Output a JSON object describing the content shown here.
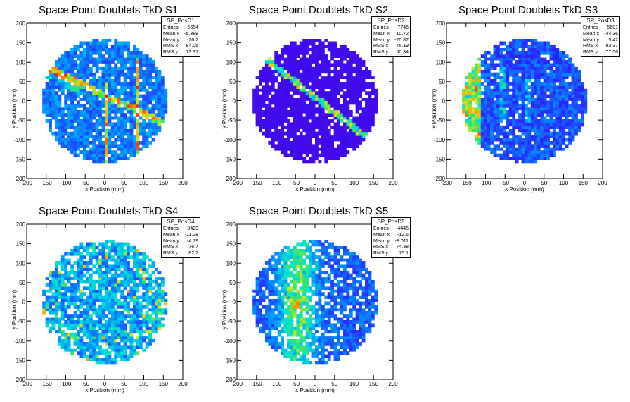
{
  "charts": [
    {
      "title": "Space Point Doublets TkD S1",
      "stats_name": "SP_PosD1",
      "stats": [
        [
          "Entries",
          "5654"
        ],
        [
          "Mean x",
          "-5.388"
        ],
        [
          "Mean y",
          "-26.2"
        ],
        [
          "RMS x",
          "84.06"
        ],
        [
          "RMS y",
          "73.37"
        ]
      ]
    },
    {
      "title": "Space Point Doublets TkD S2",
      "stats_name": "SP_PosD2",
      "stats": [
        [
          "Entries",
          "7746"
        ],
        [
          "Mean x",
          "10.72"
        ],
        [
          "Mean y",
          "-20.87"
        ],
        [
          "RMS x",
          "75.19"
        ],
        [
          "RMS y",
          "60.34"
        ]
      ]
    },
    {
      "title": "Space Point Doublets TkD S3",
      "stats_name": "SP_PosD3",
      "stats": [
        [
          "Entries",
          "5601"
        ],
        [
          "Mean x",
          "-44.36"
        ],
        [
          "Mean y",
          "5.42"
        ],
        [
          "RMS x",
          "83.37"
        ],
        [
          "RMS y",
          "77.56"
        ]
      ]
    },
    {
      "title": "Space Point Doublets TkD S4",
      "stats_name": "SP_PosD4",
      "stats": [
        [
          "Entries",
          "3429"
        ],
        [
          "Mean x",
          "-11.28"
        ],
        [
          "Mean y",
          "-4.79"
        ],
        [
          "RMS x",
          "76.7"
        ],
        [
          "RMS y",
          "82.7"
        ]
      ]
    },
    {
      "title": "Space Point Doublets TkD S5",
      "stats_name": "SP_PosD5",
      "stats": [
        [
          "Entries",
          "4445"
        ],
        [
          "Mean x",
          "-12.6"
        ],
        [
          "Mean y",
          "-8.011"
        ],
        [
          "RMS x",
          "74.38"
        ],
        [
          "RMS y",
          "75.1"
        ]
      ]
    }
  ],
  "chart_data": [
    {
      "type": "heatmap",
      "title": "Space Point Doublets TkD S1",
      "xlabel": "x Position (mm)",
      "ylabel": "y Position (mm)",
      "xlim": [
        -200,
        200
      ],
      "ylim": [
        -200,
        200
      ],
      "xticks": [
        -200,
        -150,
        -100,
        -50,
        0,
        50,
        100,
        150,
        200
      ],
      "yticks": [
        -200,
        -150,
        -100,
        -50,
        0,
        50,
        100,
        150,
        200
      ],
      "detector_radius": 160,
      "pattern": "lines"
    },
    {
      "type": "heatmap",
      "title": "Space Point Doublets TkD S2",
      "xlabel": "x Position (mm)",
      "ylabel": "y Position (mm)",
      "xlim": [
        -200,
        200
      ],
      "ylim": [
        -200,
        200
      ],
      "xticks": [
        -200,
        -150,
        -100,
        -50,
        0,
        50,
        100,
        150,
        200
      ],
      "yticks": [
        -200,
        -150,
        -100,
        -50,
        0,
        50,
        100,
        150,
        200
      ],
      "detector_radius": 160,
      "pattern": "diagonal"
    },
    {
      "type": "heatmap",
      "title": "Space Point Doublets TkD S3",
      "xlabel": "x Position (mm)",
      "ylabel": "y Position (mm)",
      "xlim": [
        -200,
        200
      ],
      "ylim": [
        -200,
        200
      ],
      "xticks": [
        -200,
        -150,
        -100,
        -50,
        0,
        50,
        100,
        150,
        200
      ],
      "yticks": [
        -200,
        -150,
        -100,
        -50,
        0,
        50,
        100,
        150,
        200
      ],
      "detector_radius": 160,
      "pattern": "leftedge"
    },
    {
      "type": "heatmap",
      "title": "Space Point Doublets TkD S4",
      "xlabel": "x Position (mm)",
      "ylabel": "y Position (mm)",
      "xlim": [
        -200,
        200
      ],
      "ylim": [
        -200,
        200
      ],
      "xticks": [
        -200,
        -150,
        -100,
        -50,
        0,
        50,
        100,
        150,
        200
      ],
      "yticks": [
        -200,
        -150,
        -100,
        -50,
        0,
        50,
        100,
        150,
        200
      ],
      "detector_radius": 160,
      "pattern": "scatter"
    },
    {
      "type": "heatmap",
      "title": "Space Point Doublets TkD S5",
      "xlabel": "x Position (mm)",
      "ylabel": "y Position (mm)",
      "xlim": [
        -200,
        200
      ],
      "ylim": [
        -200,
        200
      ],
      "xticks": [
        -200,
        -150,
        -100,
        -50,
        0,
        50,
        100,
        150,
        200
      ],
      "yticks": [
        -200,
        -150,
        -100,
        -50,
        0,
        50,
        100,
        150,
        200
      ],
      "detector_radius": 160,
      "pattern": "center"
    }
  ]
}
